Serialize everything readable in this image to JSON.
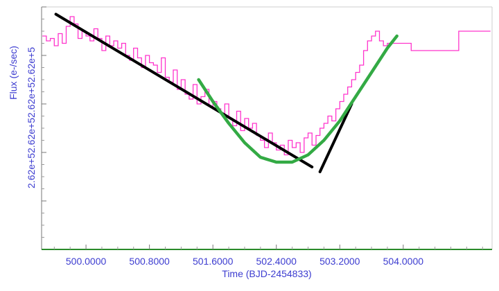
{
  "chart_data": {
    "type": "line",
    "xlabel": "Time (BJD-2454833)",
    "ylabel": "Flux (e-/sec)",
    "y_tick_label_text": "2.62e+52.62e+52.62e+52.62e+5",
    "xlim": [
      499.44,
      505.12
    ],
    "ylim": [
      0,
      100
    ],
    "x_ticks": [
      500.0,
      500.8,
      501.6,
      502.4,
      503.2,
      504.0
    ],
    "x_tick_labels": [
      "500.0000",
      "500.8000",
      "501.6000",
      "502.4000",
      "503.2000",
      "504.0000"
    ],
    "y_ticks": [
      20,
      40,
      60,
      80,
      100
    ],
    "grid": false,
    "colors": {
      "data": "#ff33cc",
      "fit_line": "#000000",
      "fit_curve": "#33aa44",
      "axis_text": "#3c3cd0",
      "baseline": "#2a8a2a"
    },
    "series": [
      {
        "style": "step",
        "x": [
          499.45,
          499.5,
          499.55,
          499.6,
          499.65,
          499.7,
          499.75,
          499.8,
          499.85,
          499.9,
          499.95,
          500.0,
          500.05,
          500.1,
          500.15,
          500.2,
          500.25,
          500.3,
          500.35,
          500.4,
          500.45,
          500.5,
          500.55,
          500.6,
          500.65,
          500.7,
          500.75,
          500.8,
          500.85,
          500.9,
          500.95,
          501.0,
          501.05,
          501.1,
          501.15,
          501.2,
          501.25,
          501.3,
          501.35,
          501.4,
          501.45,
          501.5,
          501.55,
          501.6,
          501.65,
          501.7,
          501.75,
          501.8,
          501.85,
          501.9,
          501.95,
          502.0,
          502.05,
          502.1,
          502.15,
          502.2,
          502.25,
          502.3,
          502.35,
          502.4,
          502.45,
          502.5,
          502.55,
          502.6,
          502.65,
          502.7,
          502.75,
          502.8,
          502.85,
          502.9,
          502.95,
          503.0,
          503.05,
          503.1,
          503.15,
          503.2,
          503.25,
          503.3,
          503.35,
          503.4,
          503.45,
          503.5,
          503.55,
          503.6,
          503.65,
          503.7,
          503.75,
          503.8,
          504.1,
          504.2,
          504.3,
          504.4,
          504.5,
          504.6,
          504.7,
          505.1
        ],
        "y": [
          88,
          86,
          87,
          84,
          89,
          85,
          92,
          96,
          93,
          87,
          90,
          88,
          86,
          91,
          87,
          82,
          88,
          84,
          86,
          83,
          85,
          80,
          78,
          83,
          79,
          75,
          80,
          77,
          76,
          73,
          79,
          71,
          69,
          74,
          66,
          70,
          64,
          62,
          68,
          60,
          63,
          66,
          59,
          61,
          58,
          56,
          60,
          54,
          51,
          57,
          49,
          54,
          50,
          52,
          47,
          45,
          42,
          48,
          44,
          41,
          43,
          39,
          45,
          42,
          44,
          40,
          46,
          48,
          43,
          47,
          50,
          52,
          55,
          53,
          58,
          61,
          64,
          67,
          70,
          73,
          76,
          82,
          86,
          88,
          90,
          86,
          84,
          85,
          82,
          82,
          82,
          82,
          82,
          82,
          90,
          90
        ]
      }
    ],
    "fit_lines": [
      {
        "x": [
          499.62,
          502.85
        ],
        "y": [
          97,
          34
        ]
      },
      {
        "x": [
          502.95,
          503.35
        ],
        "y": [
          32,
          60
        ]
      }
    ],
    "fit_curve": {
      "x": [
        501.42,
        501.6,
        501.8,
        502.0,
        502.2,
        502.4,
        502.6,
        502.8,
        503.0,
        503.2,
        503.4,
        503.6,
        503.8,
        503.92
      ],
      "y": [
        70,
        61,
        52,
        44,
        38,
        36,
        36,
        39,
        45,
        53,
        63,
        73,
        83,
        88
      ]
    }
  }
}
